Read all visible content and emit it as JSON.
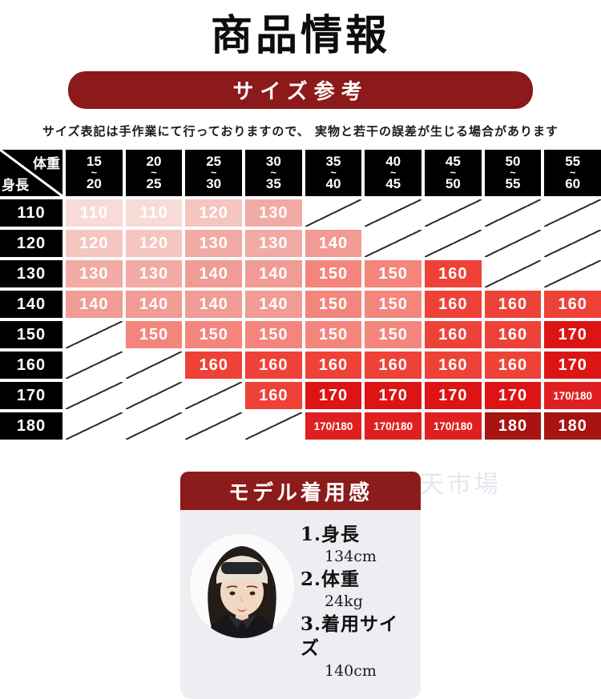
{
  "page": {
    "title": "商品情報",
    "size_banner": "サイズ参考",
    "note": "サイズ表記は手作業にて行っておりますので、 実物と若干の誤差が生じる場合があります",
    "watermark": "楽天市場"
  },
  "colors": {
    "banner_red": "#8c1a1a",
    "header_black": "#000000",
    "card_body_gray": "#edeef1",
    "diagonal_line": "#2b2b2b"
  },
  "size_table": {
    "corner": {
      "top_right": "体重",
      "bottom_left": "身長"
    },
    "columns": [
      {
        "from": "15",
        "to": "20"
      },
      {
        "from": "20",
        "to": "25"
      },
      {
        "from": "25",
        "to": "30"
      },
      {
        "from": "30",
        "to": "35"
      },
      {
        "from": "35",
        "to": "40"
      },
      {
        "from": "40",
        "to": "45"
      },
      {
        "from": "45",
        "to": "50"
      },
      {
        "from": "50",
        "to": "55"
      },
      {
        "from": "55",
        "to": "60"
      }
    ],
    "rows": [
      {
        "height": "110",
        "cells": [
          "110",
          "110",
          "120",
          "130",
          "",
          "",
          "",
          "",
          ""
        ]
      },
      {
        "height": "120",
        "cells": [
          "120",
          "120",
          "130",
          "130",
          "140",
          "",
          "",
          "",
          ""
        ]
      },
      {
        "height": "130",
        "cells": [
          "130",
          "130",
          "140",
          "140",
          "150",
          "150",
          "160",
          "",
          ""
        ]
      },
      {
        "height": "140",
        "cells": [
          "140",
          "140",
          "140",
          "140",
          "150",
          "150",
          "160",
          "160",
          "160"
        ]
      },
      {
        "height": "150",
        "cells": [
          "",
          "150",
          "150",
          "150",
          "150",
          "150",
          "160",
          "160",
          "170"
        ]
      },
      {
        "height": "160",
        "cells": [
          "",
          "",
          "160",
          "160",
          "160",
          "160",
          "160",
          "160",
          "170"
        ]
      },
      {
        "height": "170",
        "cells": [
          "",
          "",
          "",
          "160",
          "170",
          "170",
          "170",
          "170",
          "170/180"
        ]
      },
      {
        "height": "180",
        "cells": [
          "",
          "",
          "",
          "",
          "170/180",
          "170/180",
          "170/180",
          "180",
          "180"
        ]
      }
    ],
    "cell_colors": {
      "110": "#f8dbd7",
      "120": "#f5c5c0",
      "130": "#f1aba4",
      "140": "#f09b94",
      "150": "#f4857d",
      "160": "#ee4238",
      "170": "#dd1414",
      "170/180": "#e02020",
      "180": "#a71412"
    }
  },
  "model": {
    "header": "モデル着用感",
    "photo_alt": "model-girl-photo",
    "items": [
      {
        "label": "1.身長",
        "value": "134cm"
      },
      {
        "label": "2.体重",
        "value": "24kg"
      },
      {
        "label": "3.着用サイズ",
        "value": "140cm"
      }
    ]
  }
}
